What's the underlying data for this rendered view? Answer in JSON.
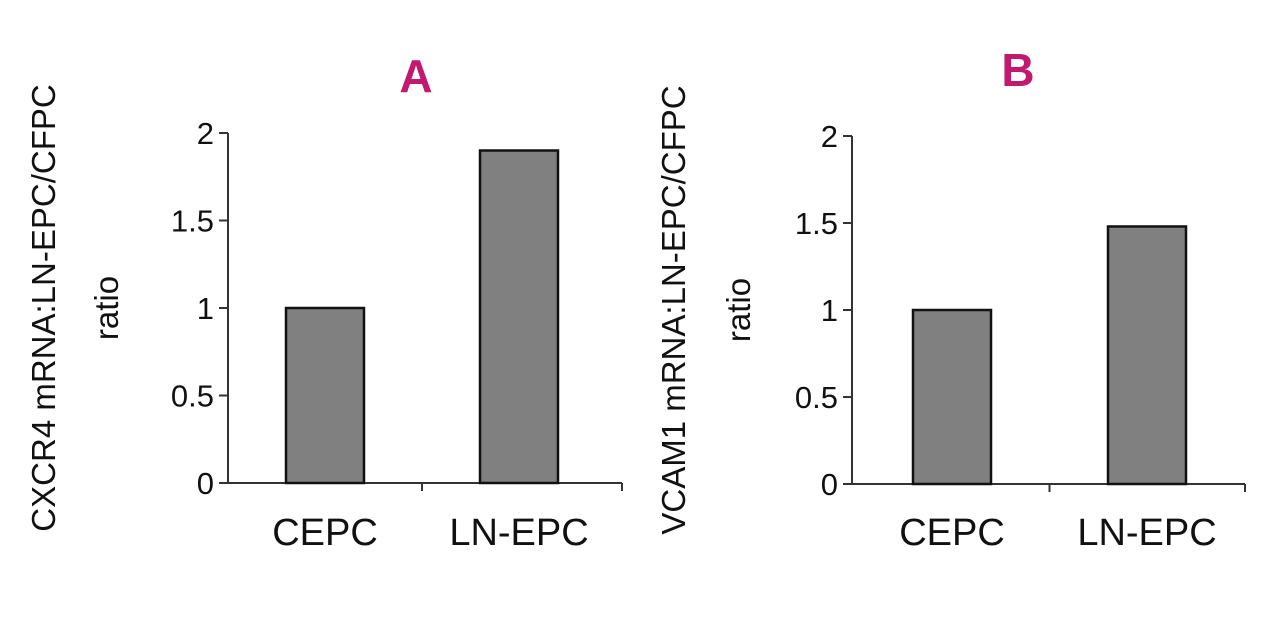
{
  "colors": {
    "panel_letter": "#c2186e",
    "bar_fill": "#808080",
    "bar_stroke": "#111111",
    "axis": "#333333"
  },
  "chart_data": [
    {
      "type": "bar",
      "panel": "A",
      "ylabel_lines": [
        "CXCR4 mRNA:LN-EPC/CFPC",
        "ratio"
      ],
      "categories": [
        "CEPC",
        "LN-EPC"
      ],
      "values": [
        1.0,
        1.9
      ],
      "ylim": [
        0,
        2
      ],
      "yticks": [
        0,
        0.5,
        1,
        1.5,
        2
      ],
      "ytick_labels": [
        "0",
        "0.5",
        "1",
        "1.5",
        "2"
      ],
      "grid": false,
      "legend": "none"
    },
    {
      "type": "bar",
      "panel": "B",
      "ylabel_lines": [
        "VCAM1 mRNA:LN-EPC/CFPC",
        "ratio"
      ],
      "categories": [
        "CEPC",
        "LN-EPC"
      ],
      "values": [
        1.0,
        1.48
      ],
      "ylim": [
        0,
        2
      ],
      "yticks": [
        0,
        0.5,
        1,
        1.5,
        2
      ],
      "ytick_labels": [
        "0",
        "0.5",
        "1",
        "1.5",
        "2"
      ],
      "grid": false,
      "legend": "none"
    }
  ]
}
